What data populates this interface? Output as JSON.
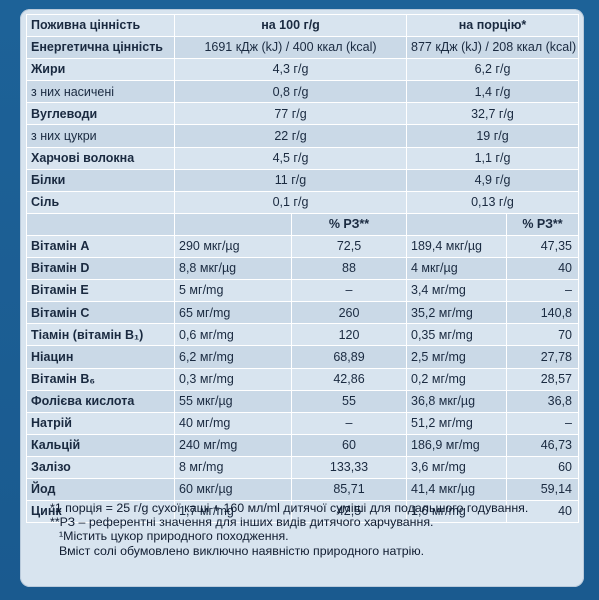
{
  "header": {
    "col_label": "Поживна цінність",
    "col_100": "на 100 г/g",
    "col_portion": "на порцію*",
    "rz_100": "% РЗ**",
    "rz_portion": "% РЗ**"
  },
  "energy": {
    "label": "Енергетична цінність",
    "v100": "1691 кДж (kJ) / 400 ккал (kcal)",
    "vportion": "877 кДж (kJ) / 208 ккал (kcal)"
  },
  "macros": [
    {
      "label": "Жири",
      "bold": true,
      "v100": "4,3 г/g",
      "vportion": "6,2 г/g"
    },
    {
      "label": "з них насичені",
      "bold": false,
      "v100": "0,8 г/g",
      "vportion": "1,4 г/g"
    },
    {
      "label": "Вуглеводи",
      "bold": true,
      "v100": "77 г/g",
      "vportion": "32,7 г/g"
    },
    {
      "label": "з них цукри",
      "bold": false,
      "v100": "22 г/g",
      "vportion": "19 г/g"
    },
    {
      "label": "Харчові волокна",
      "bold": true,
      "v100": "4,5 г/g",
      "vportion": "1,1 г/g"
    },
    {
      "label": "Білки",
      "bold": true,
      "v100": "11 г/g",
      "vportion": "4,9 г/g"
    },
    {
      "label": "Сіль",
      "bold": true,
      "v100": "0,1 г/g",
      "vportion": "0,13 г/g"
    }
  ],
  "micros": [
    {
      "label": "Вітамін А",
      "bold": true,
      "v100": "290 мкг/µg",
      "rz100": "72,5",
      "vportion": "189,4 мкг/µg",
      "rzportion": "47,35"
    },
    {
      "label": "Вітамін D",
      "bold": true,
      "v100": "8,8 мкг/µg",
      "rz100": "88",
      "vportion": "4 мкг/µg",
      "rzportion": "40"
    },
    {
      "label": "Вітамін Е",
      "bold": true,
      "v100": "5 мг/mg",
      "rz100": "–",
      "vportion": "3,4 мг/mg",
      "rzportion": "–"
    },
    {
      "label": "Вітамін С",
      "bold": true,
      "v100": "65 мг/mg",
      "rz100": "260",
      "vportion": "35,2 мг/mg",
      "rzportion": "140,8"
    },
    {
      "label": "Тіамін (вітамін B₁)",
      "bold": true,
      "v100": "0,6 мг/mg",
      "rz100": "120",
      "vportion": "0,35 мг/mg",
      "rzportion": "70"
    },
    {
      "label": "Ніацин",
      "bold": true,
      "v100": "6,2 мг/mg",
      "rz100": "68,89",
      "vportion": "2,5 мг/mg",
      "rzportion": "27,78"
    },
    {
      "label": "Вітамін B₆",
      "bold": true,
      "v100": "0,3 мг/mg",
      "rz100": "42,86",
      "vportion": "0,2 мг/mg",
      "rzportion": "28,57"
    },
    {
      "label": "Фолієва кислота",
      "bold": true,
      "v100": "55 мкг/µg",
      "rz100": "55",
      "vportion": "36,8 мкг/µg",
      "rzportion": "36,8"
    },
    {
      "label": "Натрій",
      "bold": true,
      "v100": "40 мг/mg",
      "rz100": "–",
      "vportion": "51,2 мг/mg",
      "rzportion": "–"
    },
    {
      "label": "Кальцій",
      "bold": true,
      "v100": "240 мг/mg",
      "rz100": "60",
      "vportion": "186,9 мг/mg",
      "rzportion": "46,73"
    },
    {
      "label": "Залізо",
      "bold": true,
      "v100": "8 мг/mg",
      "rz100": "133,33",
      "vportion": "3,6 мг/mg",
      "rzportion": "60"
    },
    {
      "label": "Йод",
      "bold": true,
      "v100": "60 мкг/µg",
      "rz100": "85,71",
      "vportion": "41,4 мкг/µg",
      "rzportion": "59,14"
    },
    {
      "label": "Цинк",
      "bold": true,
      "v100": "1,7 мг/mg",
      "rz100": "42,5",
      "vportion": "1,6 мг/mg",
      "rzportion": "40"
    }
  ],
  "footnotes": [
    "*1 порція = 25 г/g сухої каші + 160 мл/ml дитячої суміші для подальшого годування.",
    "**РЗ – референтні значення для інших видів дитячого харчування.",
    "¹Містить цукор природного походження.",
    "Вміст солі обумовлено виключно наявністю природного натрію."
  ]
}
